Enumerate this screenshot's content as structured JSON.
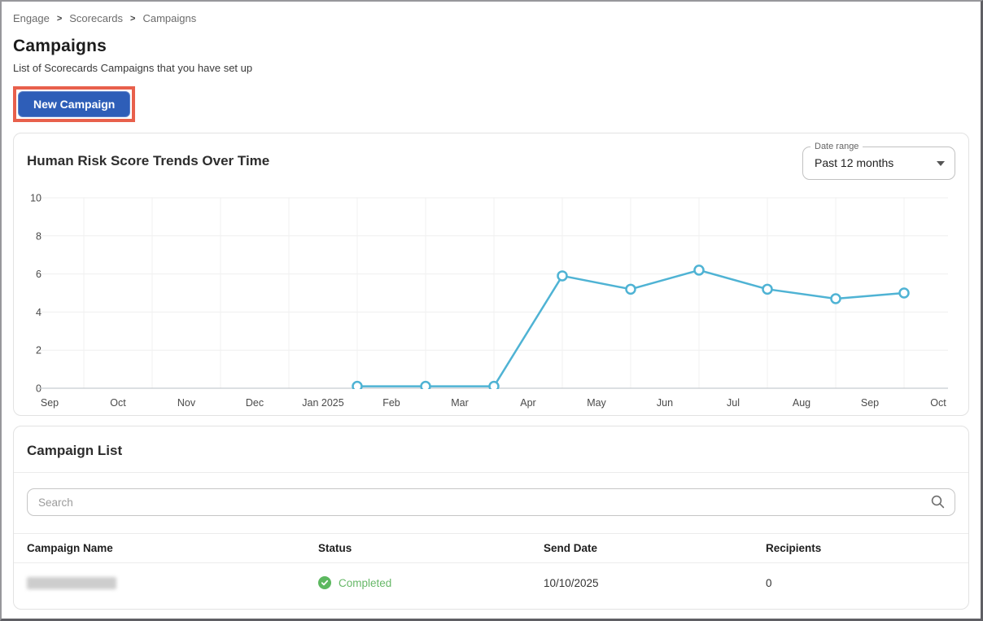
{
  "breadcrumb": {
    "items": [
      "Engage",
      "Scorecards",
      "Campaigns"
    ],
    "separator": ">"
  },
  "page": {
    "title": "Campaigns",
    "subtitle": "List of Scorecards Campaigns that you have set up"
  },
  "actions": {
    "new_campaign_label": "New Campaign",
    "button_color": "#2e5eb8",
    "highlight_color": "#e8604c"
  },
  "trend_card": {
    "title": "Human Risk Score Trends Over Time",
    "date_range": {
      "label": "Date range",
      "value": "Past 12 months"
    }
  },
  "chart_data": {
    "type": "line",
    "title": "Human Risk Score Trends Over Time",
    "x_tick_labels": [
      "Sep",
      "Oct",
      "Nov",
      "Dec",
      "Jan 2025",
      "Feb",
      "Mar",
      "Apr",
      "May",
      "Jun",
      "Jul",
      "Aug",
      "Sep",
      "Oct"
    ],
    "y_ticks": [
      0,
      2,
      4,
      6,
      8,
      10
    ],
    "ylim": [
      0,
      10
    ],
    "grid": "on",
    "legend": "none",
    "series": [
      {
        "name": "Human Risk Score",
        "color": "#4fb3d4",
        "marker": "circle-open",
        "points": [
          {
            "x": 4.5,
            "y": 0.1
          },
          {
            "x": 5.5,
            "y": 0.1
          },
          {
            "x": 6.5,
            "y": 0.1
          },
          {
            "x": 7.5,
            "y": 5.9
          },
          {
            "x": 8.5,
            "y": 5.2
          },
          {
            "x": 9.5,
            "y": 6.2
          },
          {
            "x": 10.5,
            "y": 5.2
          },
          {
            "x": 11.5,
            "y": 4.7
          },
          {
            "x": 12.5,
            "y": 5.0
          }
        ]
      }
    ]
  },
  "campaign_list": {
    "title": "Campaign List",
    "search_placeholder": "Search",
    "columns": [
      "Campaign Name",
      "Status",
      "Send Date",
      "Recipients"
    ],
    "rows": [
      {
        "name_redacted": true,
        "status": "Completed",
        "status_color": "#67b868",
        "send_date": "10/10/2025",
        "recipients": "0"
      }
    ]
  }
}
